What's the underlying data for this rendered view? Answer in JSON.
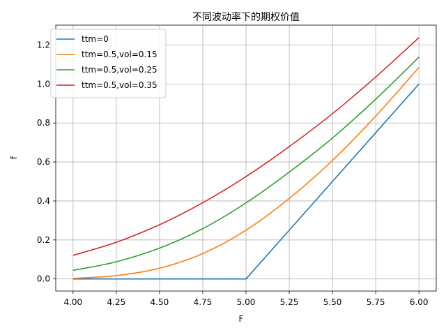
{
  "chart_data": {
    "type": "line",
    "title": "不同波动率下的期权价值",
    "xlabel": "F",
    "ylabel": "f",
    "xlim": [
      3.9,
      6.1
    ],
    "ylim": [
      -0.062,
      1.302
    ],
    "x_ticks": [
      "4.00",
      "4.25",
      "4.50",
      "4.75",
      "5.00",
      "5.25",
      "5.50",
      "5.75",
      "6.00"
    ],
    "y_ticks": [
      "0.0",
      "0.2",
      "0.4",
      "0.6",
      "0.8",
      "1.0",
      "1.2"
    ],
    "grid": true,
    "legend_position": "top-left",
    "x": [
      4.0,
      4.25,
      4.5,
      4.75,
      5.0,
      5.25,
      5.5,
      5.75,
      6.0
    ],
    "series": [
      {
        "name": "ttm=0",
        "color": "#1f77b4",
        "values": [
          0.0,
          0.0,
          0.0,
          0.0,
          0.0,
          0.25,
          0.5,
          0.75,
          1.0
        ]
      },
      {
        "name": "ttm=0.5,vol=0.15",
        "color": "#ff7f0e",
        "values": [
          0.003,
          0.017,
          0.055,
          0.13,
          0.25,
          0.413,
          0.608,
          0.835,
          1.085
        ]
      },
      {
        "name": "ttm=0.5,vol=0.25",
        "color": "#2ca02c",
        "values": [
          0.044,
          0.088,
          0.158,
          0.258,
          0.39,
          0.548,
          0.723,
          0.922,
          1.138
        ]
      },
      {
        "name": "ttm=0.5,vol=0.35",
        "color": "#d62728",
        "values": [
          0.121,
          0.188,
          0.278,
          0.391,
          0.525,
          0.679,
          0.848,
          1.036,
          1.238
        ]
      }
    ]
  }
}
